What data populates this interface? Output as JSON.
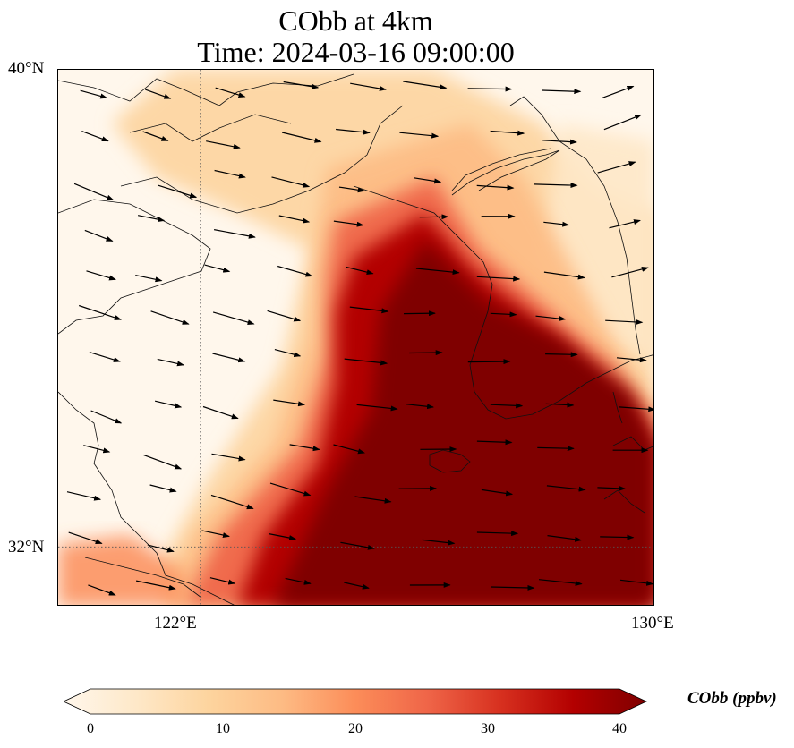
{
  "title": {
    "line1": "CObb at 4km",
    "line2": "Time: 2024-03-16 09:00:00"
  },
  "map": {
    "projection": "PlateCarree",
    "lon_range": [
      119.5,
      130
    ],
    "lat_range": [
      31,
      40
    ],
    "lat_labels": [
      "40°N",
      "32°N"
    ],
    "lon_labels": [
      "122°E",
      "130°E"
    ],
    "gridlines": {
      "lon": [
        122
      ],
      "lat": [
        32
      ],
      "style": "dotted"
    },
    "field": "CObb concentration",
    "features": [
      "coastline",
      "wind-vectors"
    ]
  },
  "colorbar": {
    "label": "CObb (ppbv)",
    "ticks": [
      "0",
      "10",
      "20",
      "30",
      "40"
    ],
    "min": 0,
    "max": 40,
    "colormap": "OrRd",
    "extend": "both",
    "colors": [
      "#fff7ec",
      "#fee8c8",
      "#fdd49e",
      "#fdbb84",
      "#fc8d59",
      "#ef6548",
      "#d7301f",
      "#b30000",
      "#7f0000"
    ]
  }
}
